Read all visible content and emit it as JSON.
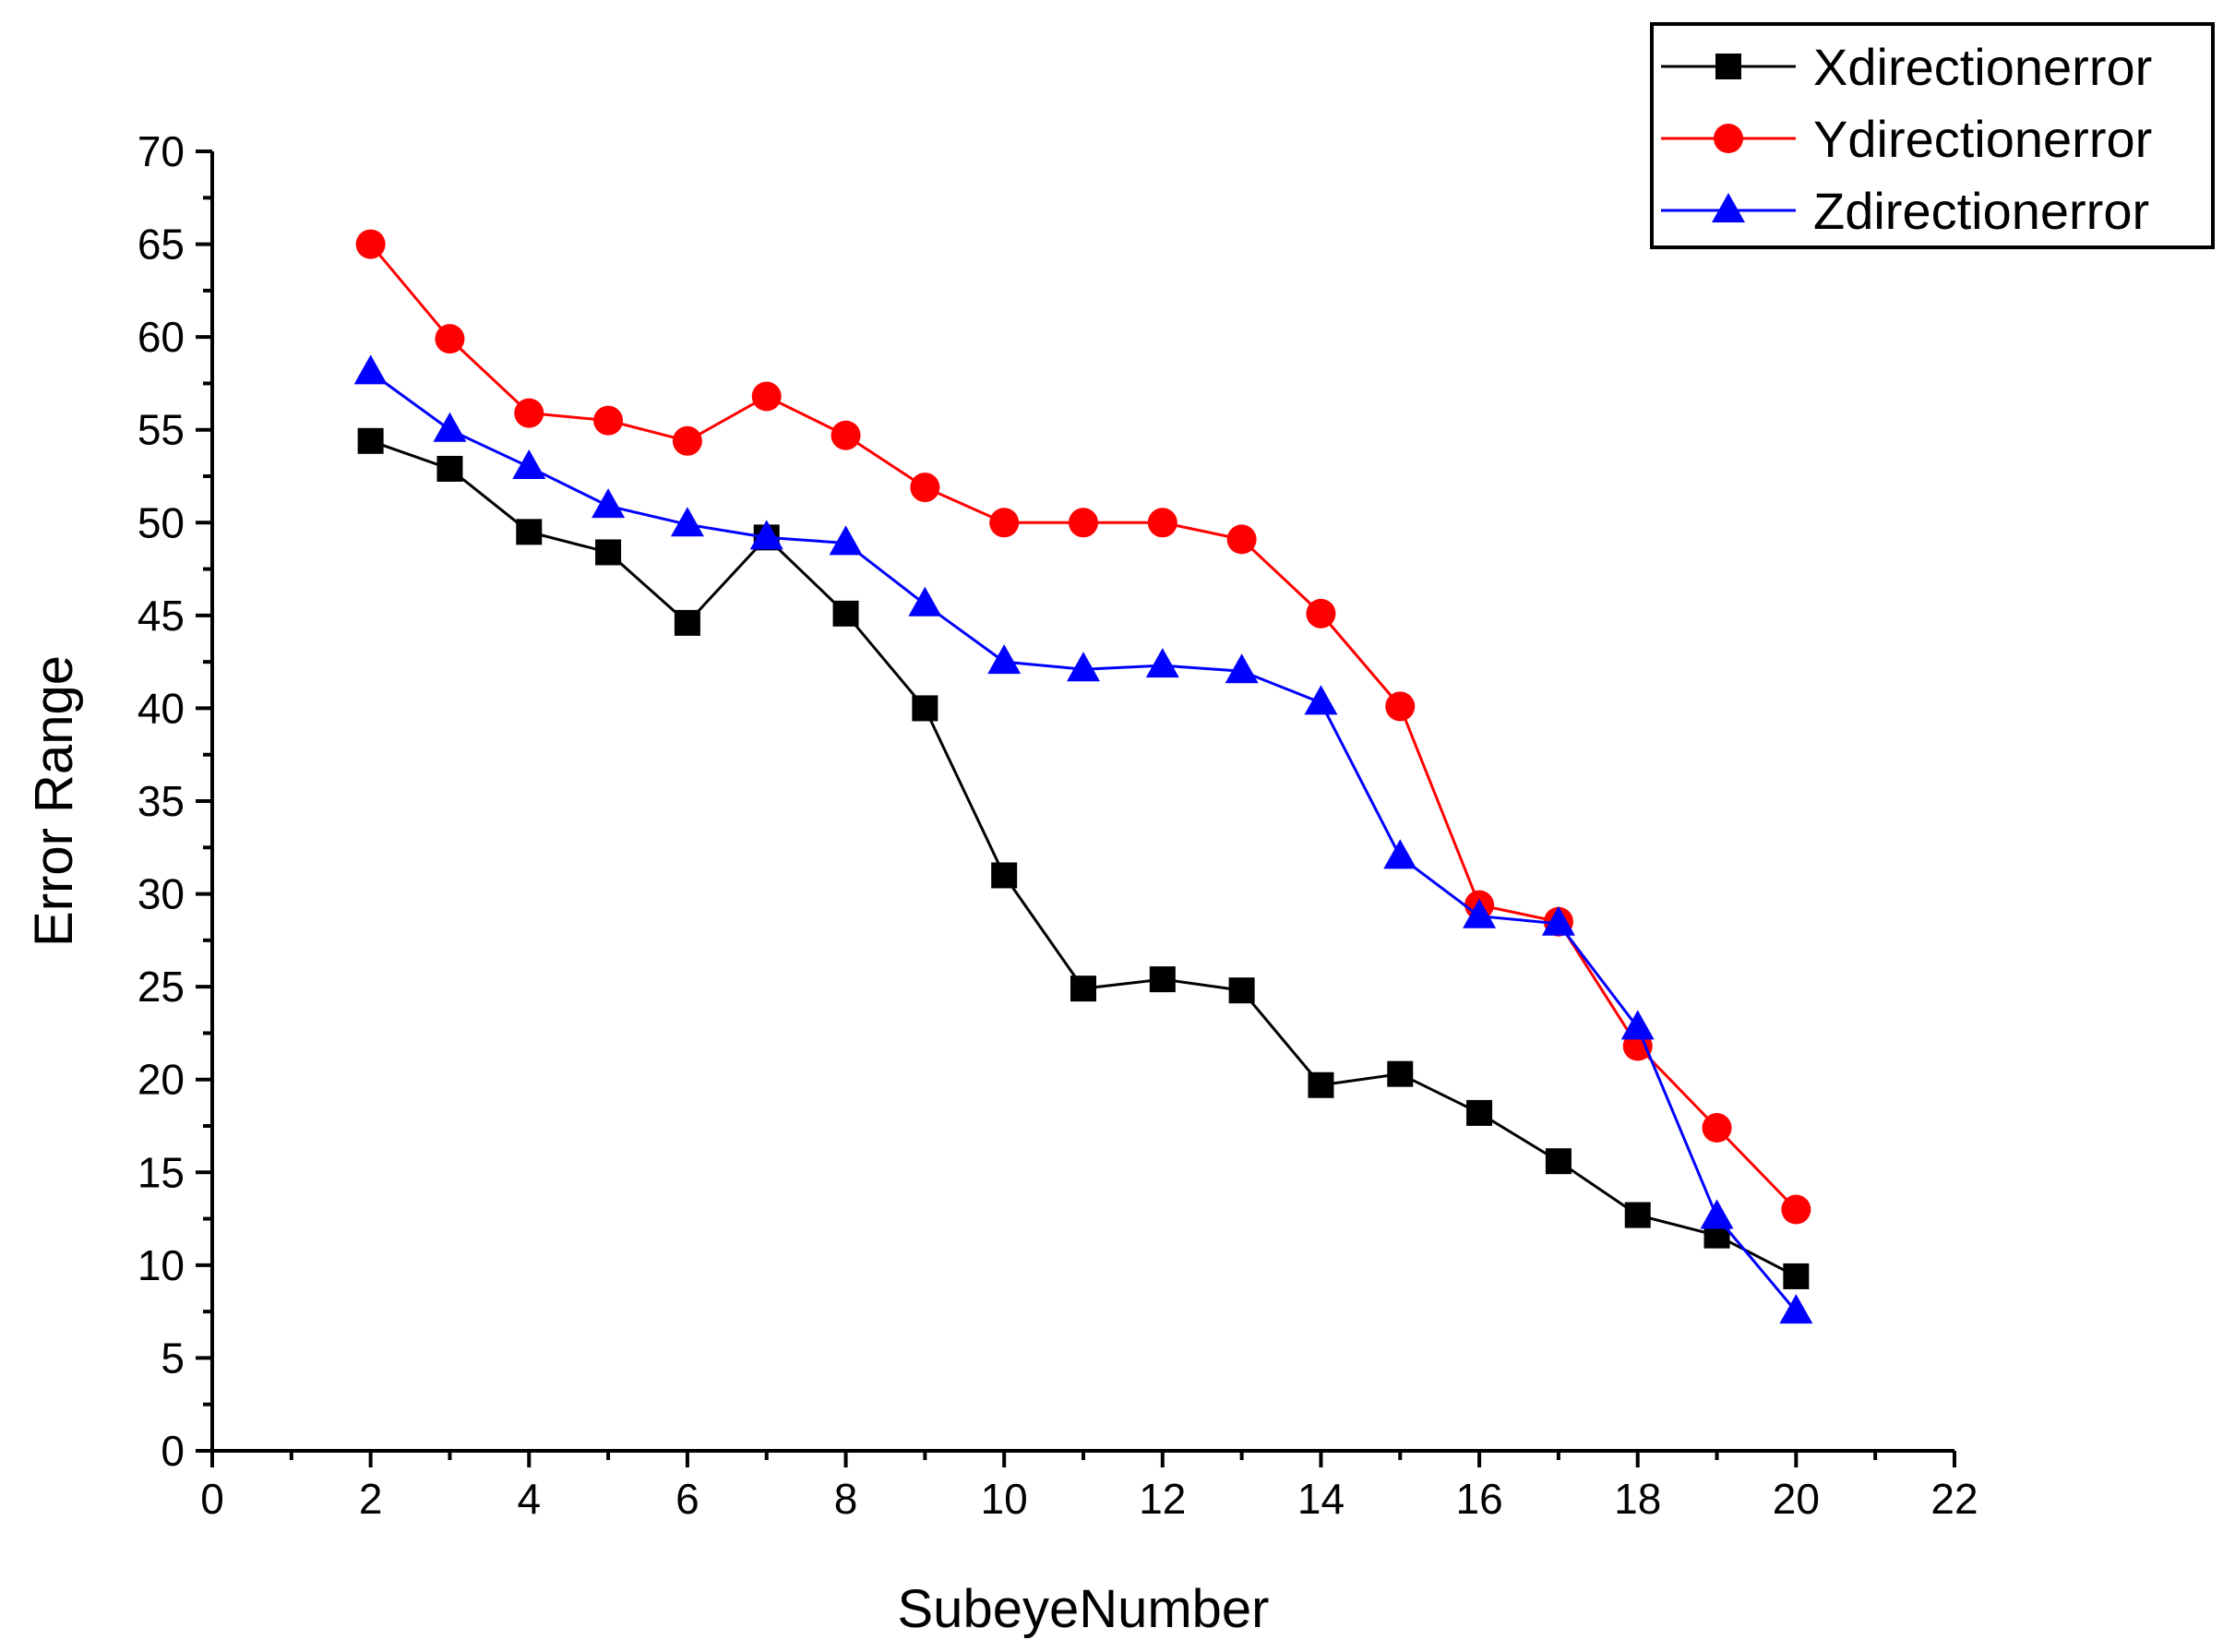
{
  "chart_data": {
    "type": "line",
    "title": "",
    "xlabel": "SubeyeNumber",
    "ylabel": "Error Range",
    "xlim": [
      0,
      22
    ],
    "ylim": [
      0,
      70
    ],
    "x_ticks": [
      0,
      2,
      4,
      6,
      8,
      10,
      12,
      14,
      16,
      18,
      20,
      22
    ],
    "y_ticks": [
      0,
      5,
      10,
      15,
      20,
      25,
      30,
      35,
      40,
      45,
      50,
      55,
      60,
      65,
      70
    ],
    "grid": false,
    "legend_position": "top-right",
    "x": [
      2,
      3,
      4,
      5,
      6,
      7,
      8,
      9,
      10,
      11,
      12,
      13,
      14,
      15,
      16,
      17,
      18,
      19,
      20
    ],
    "series": [
      {
        "name": "Xdirectionerror",
        "color": "#000000",
        "marker": "square",
        "values": [
          54.4,
          52.9,
          49.5,
          48.4,
          44.6,
          49.2,
          45.1,
          40.0,
          31.0,
          24.9,
          25.4,
          24.8,
          19.7,
          20.3,
          18.2,
          15.6,
          12.7,
          11.6,
          9.4
        ]
      },
      {
        "name": "Ydirectionerror",
        "color": "#ff0000",
        "marker": "circle",
        "values": [
          65.0,
          59.9,
          55.9,
          55.5,
          54.4,
          56.8,
          54.7,
          51.9,
          50.0,
          50.0,
          50.0,
          49.1,
          45.1,
          40.1,
          29.4,
          28.5,
          21.8,
          17.4,
          13.0
        ]
      },
      {
        "name": "Zdirectionerror",
        "color": "#0000ff",
        "marker": "triangle",
        "values": [
          58.1,
          55.0,
          53.0,
          50.9,
          49.9,
          49.2,
          48.9,
          45.6,
          42.5,
          42.1,
          42.3,
          42.0,
          40.3,
          32.0,
          28.8,
          28.4,
          22.8,
          12.6,
          7.5
        ]
      }
    ]
  }
}
